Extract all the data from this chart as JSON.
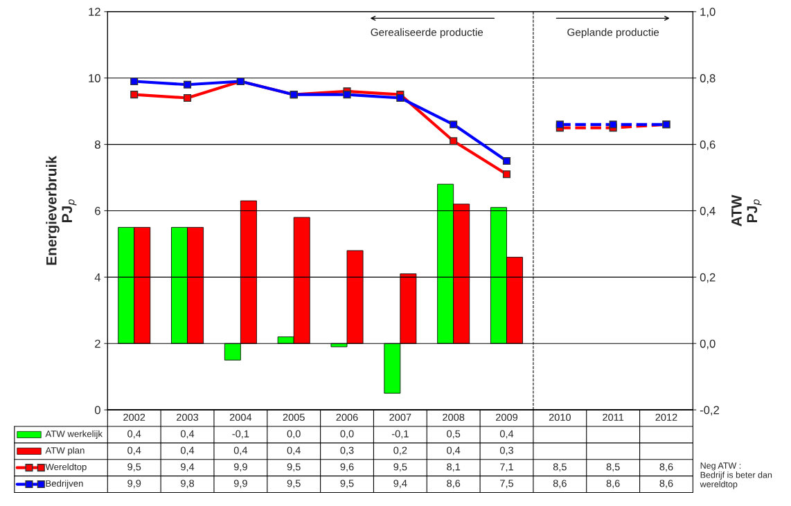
{
  "chart_data": {
    "type": "bar",
    "ylabel": "Energieverbruik\nPJ$_{p}$",
    "y2label": "ATW\nPJ$_{p}$",
    "categories": [
      "2002",
      "2003",
      "2004",
      "2005",
      "2006",
      "2007",
      "2008",
      "2009",
      "2010",
      "2011",
      "2012"
    ],
    "series": [
      {
        "name": "ATW werkelijk",
        "axis": "y2",
        "color": "#00ff00",
        "values": [
          0.35,
          0.35,
          -0.05,
          0.02,
          -0.01,
          -0.15,
          0.48,
          0.41,
          null,
          null,
          null
        ],
        "value_labels": [
          "0,4",
          "0,4",
          "-0,1",
          "0,0",
          "0,0",
          "-0,1",
          "0,5",
          "0,4",
          null,
          null,
          null
        ]
      },
      {
        "name": "ATW plan",
        "axis": "y2",
        "color": "#ff0000",
        "values": [
          0.35,
          0.35,
          0.43,
          0.38,
          0.28,
          0.21,
          0.42,
          0.26,
          null,
          null,
          null
        ],
        "value_labels": [
          "0,4",
          "0,4",
          "0,4",
          "0,4",
          "0,3",
          "0,2",
          "0,4",
          "0,3",
          null,
          null,
          null
        ]
      },
      {
        "name": "Wereldtop",
        "type": "line",
        "color": "#ff0000",
        "marker": "square",
        "line_style": "solid",
        "values": [
          9.5,
          9.4,
          9.9,
          9.5,
          9.6,
          9.5,
          8.1,
          7.1,
          null,
          null,
          null
        ],
        "value_labels": [
          "9,5",
          "9,4",
          "9,9",
          "9,5",
          "9,6",
          "9,5",
          "8,1",
          "7,1",
          "8,5",
          "8,5",
          "8,6"
        ]
      },
      {
        "type": "line",
        "color": "#ff0000",
        "marker": "square",
        "line_style": "dashed",
        "values": [
          null,
          null,
          null,
          null,
          null,
          null,
          null,
          null,
          8.5,
          8.5,
          8.6
        ],
        "value_labels": [
          null,
          null,
          null,
          null,
          null,
          null,
          null,
          null,
          null,
          null,
          null
        ]
      },
      {
        "name": "Bedrijven",
        "type": "line",
        "color": "#0000ff",
        "marker": "square",
        "line_style": "solid",
        "values": [
          9.9,
          9.8,
          9.9,
          9.5,
          9.5,
          9.4,
          8.6,
          7.5,
          null,
          null,
          null
        ],
        "value_labels": [
          "9,9",
          "9,8",
          "9,9",
          "9,5",
          "9,5",
          "9,4",
          "8,6",
          "7,5",
          "8,6",
          "8,6",
          "8,6"
        ]
      },
      {
        "type": "line",
        "color": "#0000ff",
        "marker": "square",
        "line_style": "dashed",
        "values": [
          null,
          null,
          null,
          null,
          null,
          null,
          null,
          null,
          8.6,
          8.6,
          8.6
        ],
        "value_labels": [
          null,
          null,
          null,
          null,
          null,
          null,
          null,
          null,
          null,
          null,
          null
        ]
      }
    ],
    "ylim": [
      0,
      12
    ],
    "yticks": [
      0,
      2,
      4,
      6,
      8,
      10,
      12
    ],
    "y2lim": [
      -0.2,
      1.0
    ],
    "y2ticks": [
      {
        "value": -0.2,
        "label": "-0,2"
      },
      {
        "value": 0,
        "label": "0,0"
      },
      {
        "value": 0.2,
        "label": "0,2"
      },
      {
        "value": 0.4,
        "label": "0,4"
      },
      {
        "value": 0.6,
        "label": "0,6"
      },
      {
        "value": 0.8,
        "label": "0,8"
      },
      {
        "value": 1.0,
        "label": "1,0"
      }
    ],
    "ref_lines": [
      {
        "axis": "x",
        "value": "2010",
        "line_style": "dashed",
        "color": "#000000"
      }
    ],
    "annotations": [
      "Gerealiseerde productie",
      "Geplande productie",
      "Neg ATW :\nBedrijf is beter dan\nwereldtop"
    ],
    "grid": "y",
    "legend": "bottom",
    "data_labels": true
  }
}
